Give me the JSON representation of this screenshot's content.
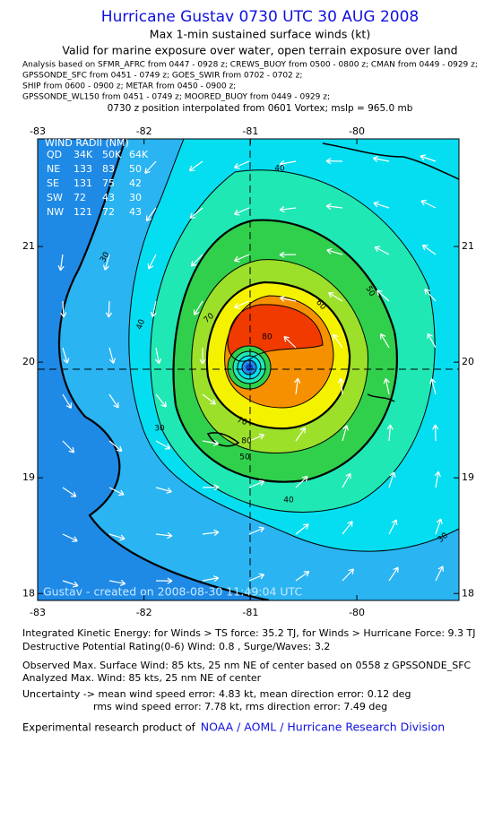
{
  "header": {
    "title": "Hurricane Gustav 0730 UTC 30 AUG 2008",
    "subtitle": "Max 1-min sustained surface winds (kt)",
    "valid": "Valid for marine exposure over water, open terrain exposure over land",
    "analysis_lines": [
      "Analysis based on   SFMR_AFRC from 0447 - 0928 z;  CREWS_BUOY from 0500 - 0800 z;  CMAN from 0449 - 0929 z;",
      "GPSSONDE_SFC from 0451 - 0749 z;  GOES_SWIR from 0702 - 0702 z;",
      "SHIP from 0600 - 0900 z;  METAR from 0450 - 0900 z;",
      "GPSSONDE_WL150 from 0451 - 0749 z;  MOORED_BUOY from 0449 - 0929 z;"
    ],
    "position": "0730 z position interpolated from 0601 Vortex; mslp = 965.0 mb"
  },
  "map": {
    "xlim": [
      -83,
      -79.04
    ],
    "ylim": [
      17.94,
      21.93
    ],
    "xticks": [
      -83,
      -82,
      -81,
      -80
    ],
    "yticks": [
      18,
      19,
      20,
      21
    ],
    "contour_labels": [
      40,
      30,
      40,
      50,
      60,
      70,
      80,
      70,
      80,
      50,
      30,
      40,
      30
    ],
    "wind_radii": {
      "title": "WIND RADII (NM)",
      "header": [
        "QD",
        "34K",
        "50K",
        "64K"
      ],
      "rows": [
        [
          "NE",
          133,
          83,
          50
        ],
        [
          "SE",
          131,
          75,
          42
        ],
        [
          "SW",
          72,
          43,
          30
        ],
        [
          "NW",
          121,
          72,
          43
        ]
      ]
    },
    "credit": "Gustav - created on 2008-08-30 11:49:04 UTC"
  },
  "footer": {
    "ike": "Integrated Kinetic Energy:  for Winds > TS force: 35.2 TJ,  for Winds > Hurricane Force: 9.3 TJ",
    "dpr": "Destructive Potential Rating(0-6)   Wind: 0.8 , Surge/Waves: 3.2",
    "observed": "Observed Max. Surface Wind: 85 kts, 25 nm NE of center based on 0558 z GPSSONDE_SFC",
    "analyzed": "Analyzed Max. Wind: 85 kts, 25 nm NE of center",
    "uncertainty_mean": "Uncertainty -> mean wind speed error: 4.83 kt,   mean direction error: 0.12 deg",
    "uncertainty_rms": "rms wind speed error: 7.78 kt,   rms direction error: 7.49 deg",
    "credit_prefix": "Experimental research product of",
    "credit_link": "NOAA / AOML / Hurricane Research Division"
  }
}
